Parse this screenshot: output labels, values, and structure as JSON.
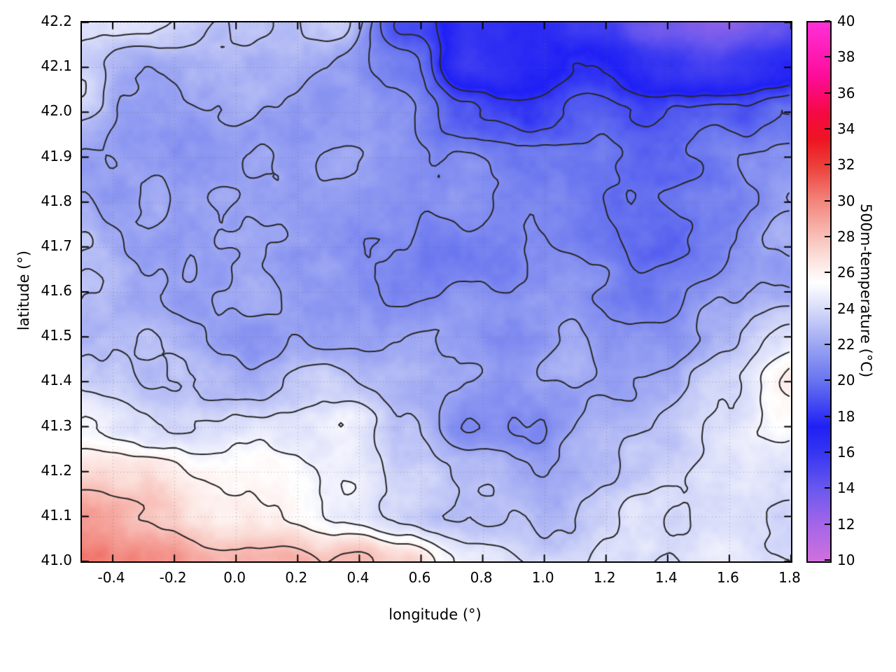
{
  "chart_data": {
    "type": "heatmap",
    "title": "",
    "xlabel": "longitude (°)",
    "ylabel": "latitude (°)",
    "colorbar_label": "500m-temperature (°C)",
    "xlim": [
      -0.5,
      1.8
    ],
    "ylim": [
      41.0,
      42.2
    ],
    "colorbar_lim": [
      10,
      40
    ],
    "xticks": [
      -0.4,
      -0.2,
      0.0,
      0.2,
      0.4,
      0.6,
      0.8,
      1.0,
      1.2,
      1.4,
      1.6,
      1.8
    ],
    "yticks": [
      41.0,
      41.1,
      41.2,
      41.3,
      41.4,
      41.5,
      41.6,
      41.7,
      41.8,
      41.9,
      42.0,
      42.1,
      42.2
    ],
    "colorbar_ticks": [
      10,
      12,
      14,
      16,
      18,
      20,
      22,
      24,
      26,
      28,
      30,
      32,
      34,
      36,
      38,
      40
    ],
    "grid": true,
    "contour_color": "#262626",
    "grid_line_color": "#6e6e6e",
    "palette": [
      {
        "v": 10,
        "c": "#d070dd"
      },
      {
        "v": 12,
        "c": "#a566e8"
      },
      {
        "v": 14,
        "c": "#6b58ee"
      },
      {
        "v": 16,
        "c": "#3636f2"
      },
      {
        "v": 17.5,
        "c": "#2020f5"
      },
      {
        "v": 20,
        "c": "#6672ef"
      },
      {
        "v": 22,
        "c": "#9aa4f2"
      },
      {
        "v": 24,
        "c": "#d6daf9"
      },
      {
        "v": 25.5,
        "c": "#ffffff"
      },
      {
        "v": 27,
        "c": "#fbddd8"
      },
      {
        "v": 28,
        "c": "#f8c1ba"
      },
      {
        "v": 30,
        "c": "#f2867d"
      },
      {
        "v": 32,
        "c": "#ec403a"
      },
      {
        "v": 33.5,
        "c": "#ee1422"
      },
      {
        "v": 35,
        "c": "#f50944"
      },
      {
        "v": 37,
        "c": "#fd0c99"
      },
      {
        "v": 40,
        "c": "#ff30d8"
      }
    ],
    "contour_levels": [
      18,
      19,
      20,
      21,
      22,
      23,
      24,
      25,
      26,
      28
    ],
    "grid_lon": [
      -0.5,
      -0.29,
      -0.08,
      0.13,
      0.34,
      0.55,
      0.76,
      0.97,
      1.18,
      1.39,
      1.59,
      1.8
    ],
    "grid_lat": [
      42.2,
      42.1,
      42.0,
      41.9,
      41.8,
      41.7,
      41.6,
      41.5,
      41.4,
      41.3,
      41.2,
      41.1,
      41.0
    ],
    "temperature_grid": [
      [
        25.0,
        24.5,
        23.0,
        22.5,
        23.0,
        18.5,
        16.5,
        16.5,
        15.5,
        14.0,
        13.5,
        15.0
      ],
      [
        23.5,
        22.5,
        22.5,
        22.0,
        21.5,
        20.0,
        16.0,
        16.5,
        17.5,
        15.5,
        15.5,
        16.5
      ],
      [
        23.0,
        22.0,
        22.0,
        21.5,
        21.5,
        20.5,
        19.0,
        18.0,
        19.0,
        18.5,
        19.0,
        19.5
      ],
      [
        22.5,
        21.5,
        21.5,
        21.5,
        21.5,
        21.0,
        20.5,
        20.0,
        20.0,
        19.5,
        20.5,
        21.0
      ],
      [
        22.5,
        22.0,
        21.5,
        21.5,
        21.5,
        21.5,
        21.0,
        20.5,
        20.0,
        19.5,
        20.5,
        21.5
      ],
      [
        23.0,
        22.0,
        22.0,
        21.5,
        21.5,
        21.5,
        21.0,
        21.0,
        20.5,
        20.0,
        21.0,
        22.0
      ],
      [
        23.5,
        22.5,
        22.0,
        22.0,
        21.5,
        21.5,
        21.5,
        21.0,
        21.0,
        21.0,
        21.5,
        22.0
      ],
      [
        23.5,
        23.0,
        22.5,
        22.0,
        22.0,
        22.0,
        21.5,
        21.0,
        21.5,
        22.0,
        22.5,
        24.0
      ],
      [
        24.0,
        23.5,
        23.0,
        23.0,
        23.5,
        23.0,
        22.0,
        21.5,
        22.0,
        22.5,
        23.5,
        26.0
      ],
      [
        24.5,
        24.5,
        24.5,
        24.5,
        25.0,
        24.0,
        21.5,
        21.5,
        23.0,
        23.5,
        24.0,
        25.5
      ],
      [
        26.5,
        26.5,
        25.5,
        25.5,
        25.0,
        24.0,
        23.0,
        22.5,
        23.0,
        23.5,
        23.5,
        24.0
      ],
      [
        28.5,
        27.5,
        26.5,
        26.0,
        25.5,
        23.5,
        22.0,
        23.0,
        23.5,
        23.5,
        23.5,
        23.5
      ],
      [
        31.0,
        29.5,
        28.5,
        28.5,
        28.5,
        27.0,
        24.0,
        23.5,
        24.0,
        24.0,
        24.0,
        24.0
      ]
    ]
  }
}
